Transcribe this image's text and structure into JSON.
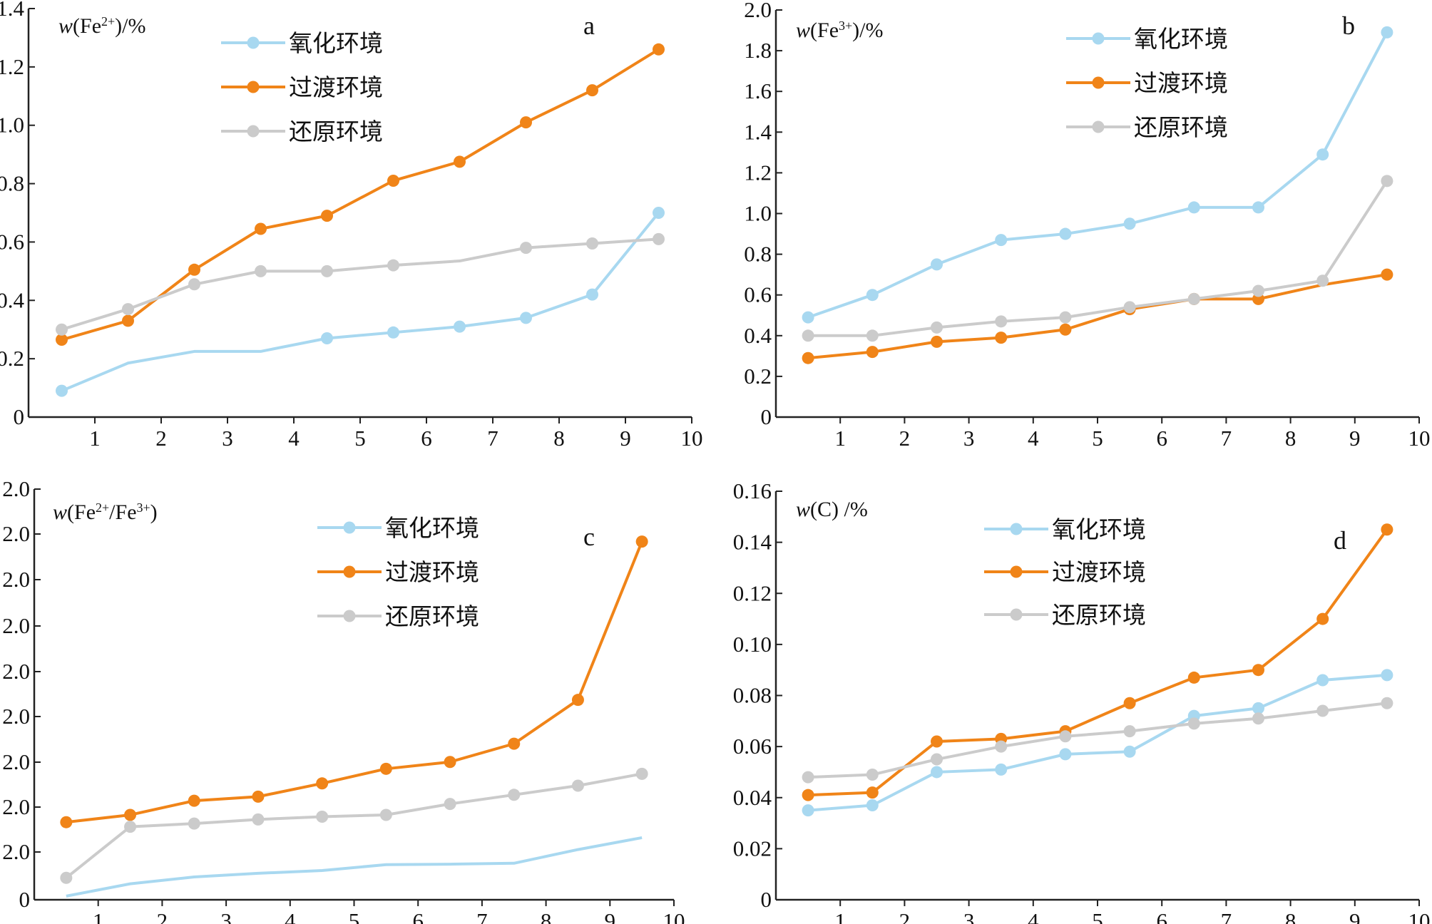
{
  "colors": {
    "oxidizing": "#a8d8f0",
    "transitional": "#f08418",
    "reducing": "#cbcbcb",
    "axis": "#222222"
  },
  "chart_data": [
    {
      "id": "a",
      "type": "line",
      "letter": "a",
      "ylabel": "w(Fe2+)/%",
      "x_ticks": [
        "1",
        "2",
        "3",
        "4",
        "5",
        "6",
        "7",
        "8",
        "9",
        "10"
      ],
      "y_ticks": [
        "0",
        "0.2",
        "0.4",
        "0.6",
        "0.8",
        "1.0",
        "1.2",
        "1.4"
      ],
      "xlim": [
        0,
        10
      ],
      "ylim": [
        0,
        1.4
      ],
      "grid": false,
      "legend_position": "top-center",
      "series": [
        {
          "name": "氧化环境",
          "key": "oxidizing",
          "x": [
            0.5,
            1.5,
            2.5,
            3.5,
            4.5,
            5.5,
            6.5,
            7.5,
            8.5,
            9.5
          ],
          "y": [
            0.09,
            0.185,
            0.225,
            0.225,
            0.27,
            0.29,
            0.31,
            0.34,
            0.42,
            0.7
          ],
          "markers": [
            true,
            false,
            false,
            false,
            true,
            true,
            true,
            true,
            true,
            true
          ]
        },
        {
          "name": "过渡环境",
          "key": "transitional",
          "x": [
            0.5,
            1.5,
            2.5,
            3.5,
            4.5,
            5.5,
            6.5,
            7.5,
            8.5,
            9.5
          ],
          "y": [
            0.265,
            0.33,
            0.505,
            0.645,
            0.69,
            0.81,
            0.875,
            1.01,
            1.12,
            1.26
          ],
          "markers": [
            true,
            true,
            true,
            true,
            true,
            true,
            true,
            true,
            true,
            true
          ]
        },
        {
          "name": "还原环境",
          "key": "reducing",
          "x": [
            0.5,
            1.5,
            2.5,
            3.5,
            4.5,
            5.5,
            6.5,
            7.5,
            8.5,
            9.5
          ],
          "y": [
            0.3,
            0.37,
            0.455,
            0.5,
            0.5,
            0.52,
            0.535,
            0.58,
            0.595,
            0.61
          ],
          "markers": [
            true,
            true,
            true,
            true,
            true,
            true,
            false,
            true,
            true,
            true
          ]
        }
      ]
    },
    {
      "id": "b",
      "type": "line",
      "letter": "b",
      "ylabel": "w(Fe3+)/%",
      "x_ticks": [
        "1",
        "2",
        "3",
        "4",
        "5",
        "6",
        "7",
        "8",
        "9",
        "10"
      ],
      "y_ticks": [
        "0",
        "0.2",
        "0.4",
        "0.6",
        "0.8",
        "1.0",
        "1.2",
        "1.4",
        "1.6",
        "1.8",
        "2.0"
      ],
      "xlim": [
        0,
        10
      ],
      "ylim": [
        0,
        2.0
      ],
      "grid": false,
      "legend_position": "top-center",
      "series": [
        {
          "name": "氧化环境",
          "key": "oxidizing",
          "x": [
            0.5,
            1.5,
            2.5,
            3.5,
            4.5,
            5.5,
            6.5,
            7.5,
            8.5,
            9.5
          ],
          "y": [
            0.49,
            0.6,
            0.75,
            0.87,
            0.9,
            0.95,
            1.03,
            1.03,
            1.29,
            1.89
          ],
          "markers": [
            true,
            true,
            true,
            true,
            true,
            true,
            true,
            true,
            true,
            true
          ]
        },
        {
          "name": "过渡环境",
          "key": "transitional",
          "x": [
            0.5,
            1.5,
            2.5,
            3.5,
            4.5,
            5.5,
            6.5,
            7.5,
            8.5,
            9.5
          ],
          "y": [
            0.29,
            0.32,
            0.37,
            0.39,
            0.43,
            0.53,
            0.58,
            0.58,
            0.65,
            0.7
          ],
          "markers": [
            true,
            true,
            true,
            true,
            true,
            true,
            true,
            true,
            false,
            true
          ]
        },
        {
          "name": "还原环境",
          "key": "reducing",
          "x": [
            0.5,
            1.5,
            2.5,
            3.5,
            4.5,
            5.5,
            6.5,
            7.5,
            8.5,
            9.5
          ],
          "y": [
            0.4,
            0.4,
            0.44,
            0.47,
            0.49,
            0.54,
            0.58,
            0.62,
            0.67,
            1.16
          ],
          "markers": [
            true,
            true,
            true,
            true,
            true,
            true,
            true,
            true,
            true,
            true
          ]
        }
      ]
    },
    {
      "id": "c",
      "type": "line",
      "letter": "c",
      "ylabel": "w(Fe2+/Fe3+)",
      "x_ticks": [
        "1",
        "2",
        "3",
        "4",
        "5",
        "6",
        "7",
        "8",
        "9",
        "10"
      ],
      "y_ticks": [
        "0",
        "2.0",
        "2.0",
        "2.0",
        "2.0",
        "2.0",
        "2.0",
        "2.0",
        "2.0",
        "2.0"
      ],
      "xlim": [
        0,
        10
      ],
      "ylim": [
        0,
        9
      ],
      "grid": false,
      "legend_position": "top-center",
      "series": [
        {
          "name": "氧化环境",
          "key": "oxidizing",
          "x": [
            0.5,
            1.5,
            2.5,
            3.5,
            4.5,
            5.5,
            6.5,
            7.5,
            8.5,
            9.5
          ],
          "y": [
            0.08,
            0.35,
            0.5,
            0.58,
            0.64,
            0.77,
            0.78,
            0.8,
            1.1,
            1.36
          ],
          "markers": [
            false,
            false,
            false,
            false,
            false,
            false,
            false,
            false,
            false,
            false
          ]
        },
        {
          "name": "过渡环境",
          "key": "transitional",
          "x": [
            0.5,
            1.5,
            2.5,
            3.5,
            4.5,
            5.5,
            6.5,
            7.5,
            8.5,
            9.5
          ],
          "y": [
            1.7,
            1.86,
            2.17,
            2.26,
            2.55,
            2.87,
            3.02,
            3.42,
            4.38,
            7.85
          ],
          "markers": [
            true,
            true,
            true,
            true,
            true,
            true,
            true,
            true,
            true,
            true
          ]
        },
        {
          "name": "还原环境",
          "key": "reducing",
          "x": [
            0.5,
            1.5,
            2.5,
            3.5,
            4.5,
            5.5,
            6.5,
            7.5,
            8.5,
            9.5
          ],
          "y": [
            0.48,
            1.6,
            1.67,
            1.76,
            1.82,
            1.86,
            2.1,
            2.3,
            2.5,
            2.76
          ],
          "markers": [
            true,
            true,
            true,
            true,
            true,
            true,
            true,
            true,
            true,
            true
          ]
        }
      ]
    },
    {
      "id": "d",
      "type": "line",
      "letter": "d",
      "ylabel": "w(C) /%",
      "x_ticks": [
        "1",
        "2",
        "3",
        "4",
        "5",
        "6",
        "7",
        "8",
        "9",
        "10"
      ],
      "y_ticks": [
        "0",
        "0.02",
        "0.04",
        "0.06",
        "0.08",
        "0.10",
        "0.12",
        "0.14",
        "0.16"
      ],
      "xlim": [
        0,
        10
      ],
      "ylim": [
        0,
        0.16
      ],
      "grid": false,
      "legend_position": "top-center",
      "series": [
        {
          "name": "氧化环境",
          "key": "oxidizing",
          "x": [
            0.5,
            1.5,
            2.5,
            3.5,
            4.5,
            5.5,
            6.5,
            7.5,
            8.5,
            9.5
          ],
          "y": [
            0.035,
            0.037,
            0.05,
            0.051,
            0.057,
            0.058,
            0.072,
            0.075,
            0.086,
            0.088
          ],
          "markers": [
            true,
            true,
            true,
            true,
            true,
            true,
            true,
            true,
            true,
            true
          ]
        },
        {
          "name": "过渡环境",
          "key": "transitional",
          "x": [
            0.5,
            1.5,
            2.5,
            3.5,
            4.5,
            5.5,
            6.5,
            7.5,
            8.5,
            9.5
          ],
          "y": [
            0.041,
            0.042,
            0.062,
            0.063,
            0.066,
            0.077,
            0.087,
            0.09,
            0.11,
            0.145
          ],
          "markers": [
            true,
            true,
            true,
            true,
            true,
            true,
            true,
            true,
            true,
            true
          ]
        },
        {
          "name": "还原环境",
          "key": "reducing",
          "x": [
            0.5,
            1.5,
            2.5,
            3.5,
            4.5,
            5.5,
            6.5,
            7.5,
            8.5,
            9.5
          ],
          "y": [
            0.048,
            0.049,
            0.055,
            0.06,
            0.064,
            0.066,
            0.069,
            0.071,
            0.074,
            0.077
          ],
          "markers": [
            true,
            true,
            true,
            true,
            true,
            true,
            true,
            true,
            true,
            true
          ]
        }
      ]
    }
  ]
}
